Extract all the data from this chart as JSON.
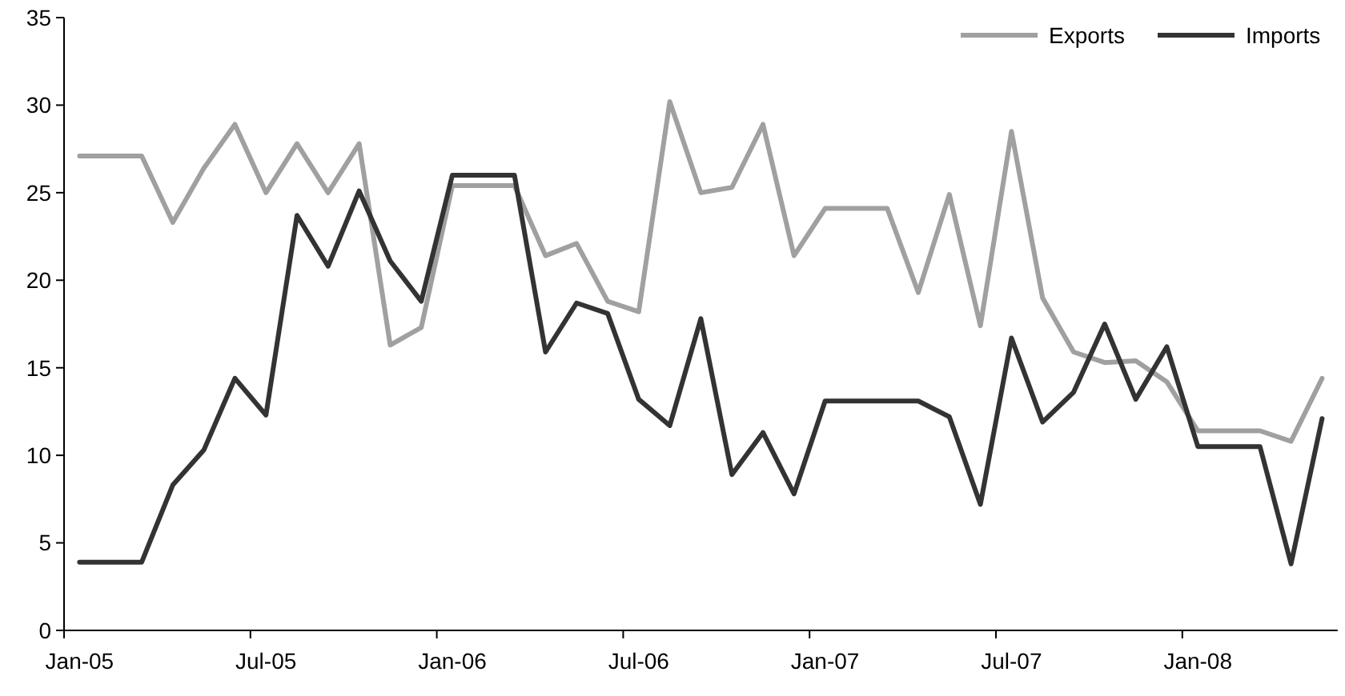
{
  "chart_data": {
    "type": "line",
    "categories": [
      "Jan-05",
      null,
      null,
      null,
      null,
      null,
      "Jul-05",
      null,
      null,
      null,
      null,
      null,
      "Jan-06",
      null,
      null,
      null,
      null,
      null,
      "Jul-06",
      null,
      null,
      null,
      null,
      null,
      "Jan-07",
      null,
      null,
      null,
      null,
      null,
      "Jul-07",
      null,
      null,
      null,
      null,
      null,
      "Jan-08",
      null,
      null,
      null,
      null
    ],
    "series": [
      {
        "name": "Exports",
        "color": "#a0a0a0",
        "values": [
          27.1,
          27.1,
          27.1,
          23.3,
          26.4,
          28.9,
          25,
          27.8,
          25,
          27.8,
          16.3,
          17.3,
          25.4,
          25.4,
          25.4,
          21.4,
          22.1,
          18.8,
          18.2,
          30.2,
          25,
          25.3,
          28.9,
          21.4,
          24.1,
          24.1,
          24.1,
          19.3,
          24.9,
          17.4,
          28.5,
          19,
          15.9,
          15.3,
          15.4,
          14.2,
          11.4,
          11.4,
          11.4,
          10.8,
          14.4
        ]
      },
      {
        "name": "Imports",
        "color": "#333333",
        "values": [
          3.9,
          3.9,
          3.9,
          8.3,
          10.3,
          14.4,
          12.3,
          23.7,
          20.8,
          25.1,
          21.1,
          18.8,
          26,
          26,
          26,
          15.9,
          18.7,
          18.1,
          13.2,
          11.7,
          17.8,
          8.9,
          11.3,
          7.8,
          13.1,
          13.1,
          13.1,
          13.1,
          12.2,
          7.2,
          16.7,
          11.9,
          13.6,
          17.5,
          13.2,
          16.2,
          10.5,
          10.5,
          10.5,
          3.8,
          12.1
        ]
      }
    ],
    "ylim": [
      0,
      35
    ],
    "yticks": [
      0,
      5,
      10,
      15,
      20,
      25,
      30,
      35
    ],
    "legend": "top right",
    "grid": false,
    "marker": "none",
    "line_style": "solid"
  }
}
